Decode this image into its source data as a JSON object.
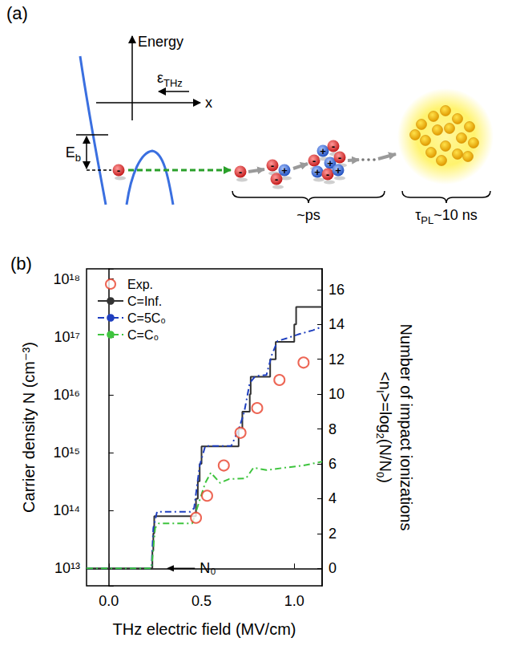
{
  "panel_a": {
    "label": "(a)",
    "energy_axis": "Energy",
    "position_axis": "x",
    "field_label": {
      "text": "ε",
      "sub": "THz"
    },
    "binding_energy_label": {
      "text": "E",
      "sub": "b"
    },
    "electron_sign": "-",
    "hole_sign": "+",
    "cascade_time": "~ps",
    "pl_time": {
      "text": "τ",
      "sub": "PL",
      "after": "~10 ns"
    }
  },
  "chart_data": {
    "type": "line",
    "panel_label": "(b)",
    "xlabel": "THz electric field (MV/cm)",
    "ylabel": "Carrier density N (cm⁻³)",
    "y2label": [
      [
        {
          "text": "Number of impact ionizations"
        }
      ],
      [
        {
          "text": "<n"
        },
        {
          "text": "I",
          "sub": true
        },
        {
          "text": ">=log"
        },
        {
          "text": "2",
          "sub": true
        },
        {
          "text": "(N/N"
        },
        {
          "text": "0",
          "sub": true
        },
        {
          "text": ")"
        }
      ]
    ],
    "log": "y",
    "grid": false,
    "legend": "upper left",
    "xlim": [
      -0.12,
      1.15
    ],
    "xticks": [
      {
        "value": 0,
        "label": "0.0"
      },
      {
        "value": 0.5,
        "label": "0.5"
      },
      {
        "value": 1,
        "label": "1.0"
      }
    ],
    "ylim": [
      5000000000000.0,
      1.5e+18
    ],
    "yticks": [
      {
        "value": 10000000000000.0,
        "label": "10¹³"
      },
      {
        "value": 100000000000000.0,
        "label": "10¹⁴"
      },
      {
        "value": 1000000000000000.0,
        "label": "10¹⁵"
      },
      {
        "value": 1e+16,
        "label": "10¹⁶"
      },
      {
        "value": 1e+17,
        "label": "10¹⁷"
      },
      {
        "value": 1e+18,
        "label": "10¹⁸"
      }
    ],
    "y2lim": [
      -1,
      17.19
    ],
    "y2ticks": [
      0,
      2,
      4,
      6,
      8,
      10,
      12,
      14,
      16
    ],
    "annotations": [
      {
        "text": "N₀",
        "y": 10000000000000.0
      }
    ],
    "series": [
      {
        "name": "Exp.",
        "type": "scatter",
        "marker": "open_circle",
        "color": "#e8402a",
        "x": [
          0.47,
          0.53,
          0.62,
          0.71,
          0.8,
          0.92,
          1.05
        ],
        "values": [
          75000000000000.0,
          180000000000000.0,
          600000000000000.0,
          2200000000000000.0,
          5900000000000000.0,
          1.8e+16,
          3.6e+16
        ]
      },
      {
        "name": "C=Inf.",
        "type": "step",
        "line_style": "solid",
        "color": "#333333",
        "x": [
          -0.12,
          0.235,
          0.24,
          0.245,
          0.47,
          0.48,
          0.49,
          0.5,
          0.7,
          0.72,
          0.76,
          0.765,
          0.87,
          0.9,
          1.0,
          1.01,
          1.15
        ],
        "values": [
          10000000000000.0,
          20000000000000.0,
          40000000000000.0,
          80000000000000.0,
          160000000000000.0,
          320000000000000.0,
          640000000000000.0,
          1280000000000000.0,
          2560000000000000.0,
          5120000000000000.0,
          1.02e+16,
          2.05e+16,
          4.1e+16,
          8.2e+16,
          1.64e+17,
          3.28e+17,
          3.28e+17
        ]
      },
      {
        "name": "C=5C₀",
        "type": "line",
        "line_style": "dashdot",
        "color": "#1f3fbf",
        "x": [
          -0.12,
          0.23,
          0.24,
          0.26,
          0.44,
          0.46,
          0.49,
          0.52,
          0.66,
          0.7,
          0.73,
          0.76,
          0.79,
          0.85,
          0.88,
          0.91,
          0.96,
          1.02,
          1.1,
          1.15
        ],
        "values": [
          10000000000000.0,
          10000000000000.0,
          50000000000000.0,
          95000000000000.0,
          95000000000000.0,
          110000000000000.0,
          600000000000000.0,
          1300000000000000.0,
          1300000000000000.0,
          2500000000000000.0,
          5000000000000000.0,
          1.6e+16,
          2.1e+16,
          2.2e+16,
          5e+16,
          8.5e+16,
          9.5e+16,
          1.1e+17,
          1.3e+17,
          1.5e+17
        ]
      },
      {
        "name": "C=C₀",
        "type": "line",
        "line_style": "dashdot",
        "color": "#3ec43e",
        "x": [
          -0.12,
          0.23,
          0.25,
          0.27,
          0.45,
          0.48,
          0.52,
          0.55,
          0.6,
          0.65,
          0.74,
          0.78,
          0.85,
          0.95,
          1.05,
          1.15
        ],
        "values": [
          10000000000000.0,
          10000000000000.0,
          50000000000000.0,
          60000000000000.0,
          60000000000000.0,
          120000000000000.0,
          300000000000000.0,
          450000000000000.0,
          300000000000000.0,
          350000000000000.0,
          360000000000000.0,
          550000000000000.0,
          500000000000000.0,
          550000000000000.0,
          600000000000000.0,
          700000000000000.0
        ]
      }
    ]
  }
}
